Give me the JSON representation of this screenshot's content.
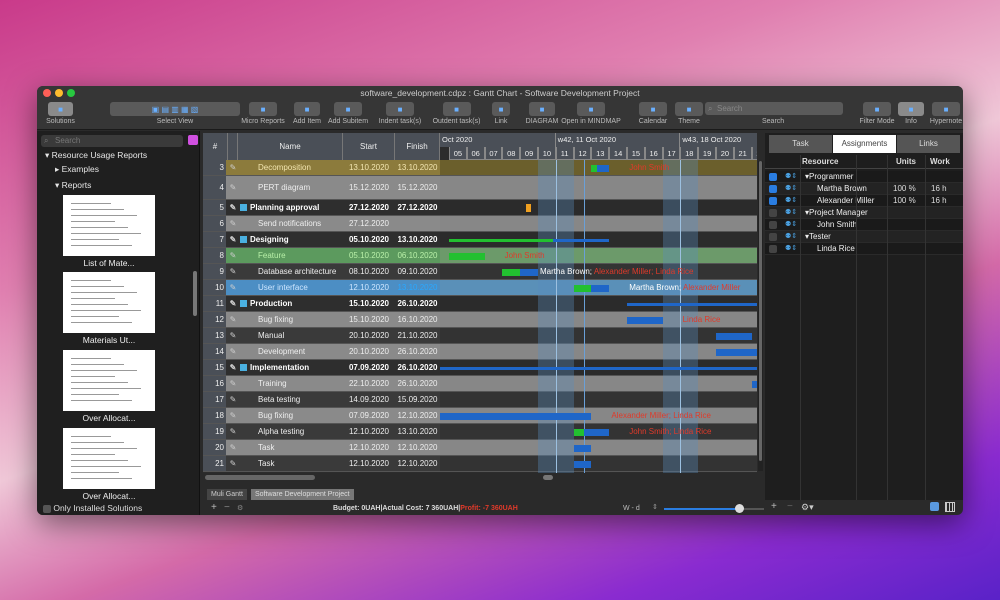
{
  "window": {
    "title": "software_development.cdpz : Gantt Chart - Software Development Project"
  },
  "toolbar": {
    "items": [
      {
        "label": "Solutions",
        "icon": "solutions-icon"
      },
      {
        "label": "Select View",
        "icon": "view-icon"
      },
      {
        "label": "Micro Reports",
        "icon": "report-icon"
      },
      {
        "label": "Add Item",
        "icon": "add-item-icon"
      },
      {
        "label": "Add Subitem",
        "icon": "add-subitem-icon"
      },
      {
        "label": "Indent task(s)",
        "icon": "indent-icon"
      },
      {
        "label": "Outdent task(s)",
        "icon": "outdent-icon"
      },
      {
        "label": "Link",
        "icon": "link-icon"
      },
      {
        "label": "DIAGRAM",
        "icon": "diagram-icon"
      },
      {
        "label": "Open in MINDMAP",
        "icon": "mindmap-icon"
      },
      {
        "label": "Calendar",
        "icon": "calendar-icon"
      },
      {
        "label": "Theme",
        "icon": "theme-icon"
      },
      {
        "label": "Filter Mode",
        "icon": "filter-icon"
      },
      {
        "label": "Info",
        "icon": "info-icon"
      },
      {
        "label": "Hypernote",
        "icon": "hypernote-icon"
      }
    ],
    "search_label": "Search",
    "search_placeholder": "Search"
  },
  "sidebar": {
    "search_placeholder": "Search",
    "section": "Resource Usage Reports",
    "examples": "Examples",
    "reports": "Reports",
    "thumbnails": [
      "List of Mate...",
      "Materials Ut...",
      "Over Allocat...",
      "Over Allocat..."
    ],
    "only_installed": "Only Installed Solutions"
  },
  "table": {
    "headers": {
      "num": "#",
      "name": "Name",
      "start": "Start",
      "finish": "Finish"
    },
    "rows": [
      {
        "n": "3",
        "name": "Decomposition",
        "start": "13.10.2020",
        "finish": "13.10.2020",
        "style": "yellow",
        "lvl": 1,
        "bar": [
          13,
          13
        ],
        "prog": 0.3,
        "labels": [
          {
            "t": "John Smith",
            "c": "red"
          }
        ]
      },
      {
        "n": "4",
        "name": "PERT diagram",
        "start": "15.12.2020",
        "finish": "15.12.2020",
        "style": "gray",
        "lvl": 1,
        "tall": true
      },
      {
        "n": "5",
        "name": "Planning approval",
        "start": "27.12.2020",
        "finish": "27.12.2020",
        "style": "summary",
        "lvl": 0,
        "milestone": 9
      },
      {
        "n": "6",
        "name": "Send notifications",
        "start": "27.12.2020",
        "finish": "",
        "style": "gray",
        "lvl": 1
      },
      {
        "n": "7",
        "name": "Designing",
        "start": "05.10.2020",
        "finish": "13.10.2020",
        "style": "summary",
        "lvl": 0,
        "bar": [
          5,
          13
        ],
        "prog": 0.65,
        "thin": true
      },
      {
        "n": "8",
        "name": "Feature",
        "start": "05.10.2020",
        "finish": "06.10.2020",
        "style": "green",
        "lvl": 1,
        "bar": [
          5,
          6
        ],
        "prog": 1,
        "labels": [
          {
            "t": "John Smith",
            "c": "red"
          }
        ]
      },
      {
        "n": "9",
        "name": "Database architecture",
        "start": "08.10.2020",
        "finish": "09.10.2020",
        "style": "dark",
        "lvl": 1,
        "bar": [
          8,
          9
        ],
        "prog": 0.5,
        "labels": [
          {
            "t": "Martha Brown; ",
            "c": "white"
          },
          {
            "t": "Alexander Miller; Linda Rice",
            "c": "red"
          }
        ]
      },
      {
        "n": "10",
        "name": "User interface",
        "start": "12.10.2020",
        "finish": "13.10.2020",
        "style": "blue",
        "lvl": 1,
        "bar": [
          12,
          13
        ],
        "prog": 0.5,
        "labels": [
          {
            "t": "Martha Brown; ",
            "c": "white"
          },
          {
            "t": "Alexander Miller",
            "c": "red"
          }
        ]
      },
      {
        "n": "11",
        "name": "Production",
        "start": "15.10.2020",
        "finish": "26.10.2020",
        "style": "summary",
        "lvl": 0,
        "bar": [
          15,
          26
        ],
        "prog": 0,
        "thin": true
      },
      {
        "n": "12",
        "name": "Bug fixing",
        "start": "15.10.2020",
        "finish": "16.10.2020",
        "style": "gray",
        "lvl": 1,
        "bar": [
          15,
          16
        ],
        "prog": 0,
        "labels": [
          {
            "t": "Linda Rice",
            "c": "red"
          }
        ]
      },
      {
        "n": "13",
        "name": "Manual",
        "start": "20.10.2020",
        "finish": "21.10.2020",
        "style": "dark",
        "lvl": 1,
        "bar": [
          20,
          21
        ],
        "prog": 0
      },
      {
        "n": "14",
        "name": "Development",
        "start": "20.10.2020",
        "finish": "26.10.2020",
        "style": "gray",
        "lvl": 1,
        "bar": [
          20,
          26
        ],
        "prog": 0
      },
      {
        "n": "15",
        "name": "Implementation",
        "start": "07.09.2020",
        "finish": "26.10.2020",
        "style": "summary",
        "lvl": 0,
        "bar": [
          -30,
          26
        ],
        "prog": 0,
        "thin": true
      },
      {
        "n": "16",
        "name": "Training",
        "start": "22.10.2020",
        "finish": "26.10.2020",
        "style": "gray",
        "lvl": 1,
        "bar": [
          22,
          26
        ],
        "prog": 0
      },
      {
        "n": "17",
        "name": "Beta testing",
        "start": "14.09.2020",
        "finish": "15.09.2020",
        "style": "dark",
        "lvl": 1
      },
      {
        "n": "18",
        "name": "Bug fixing",
        "start": "07.09.2020",
        "finish": "12.10.2020",
        "style": "gray",
        "lvl": 1,
        "bar": [
          -30,
          12
        ],
        "prog": 0,
        "labels": [
          {
            "t": "Alexander Miller; Linda Rice",
            "c": "red"
          }
        ]
      },
      {
        "n": "19",
        "name": "Alpha testing",
        "start": "12.10.2020",
        "finish": "13.10.2020",
        "style": "dark",
        "lvl": 1,
        "bar": [
          12,
          13
        ],
        "prog": 0.3,
        "labels": [
          {
            "t": "John Smith; Linda Rice",
            "c": "red"
          }
        ]
      },
      {
        "n": "20",
        "name": "Task",
        "start": "12.10.2020",
        "finish": "12.10.2020",
        "style": "gray",
        "lvl": 1,
        "bar": [
          12,
          12
        ],
        "prog": 0
      },
      {
        "n": "21",
        "name": "Task",
        "start": "12.10.2020",
        "finish": "12.10.2020",
        "style": "dark",
        "lvl": 1,
        "bar": [
          12,
          12
        ],
        "prog": 0
      }
    ]
  },
  "timeline": {
    "weeks": [
      {
        "label": "Oct 2020",
        "day": 4
      },
      {
        "label": "w42, 11 Oct 2020",
        "day": 11
      },
      {
        "label": "w43, 18 Oct 2020",
        "day": 18
      }
    ],
    "days": [
      "05",
      "06",
      "07",
      "08",
      "09",
      "10",
      "11",
      "12",
      "13",
      "14",
      "15",
      "16",
      "17",
      "18",
      "19",
      "20",
      "21",
      "22"
    ],
    "weekends": [
      10,
      11,
      17,
      18
    ],
    "today": 12.6
  },
  "colors": {
    "bar": "#1f66c8",
    "progress": "#22c030",
    "label_red": "#e03a2a",
    "milestone": "#f0a020"
  },
  "right_panel": {
    "tabs": [
      "Task",
      "Assignments",
      "Links"
    ],
    "active_tab": "Assignments",
    "headers": {
      "resource": "Resource",
      "units": "Units",
      "work": "Work"
    },
    "rows": [
      {
        "name": "Programmer",
        "group": true,
        "checked": true,
        "units": "",
        "work": ""
      },
      {
        "name": "Martha Brown",
        "group": false,
        "checked": true,
        "units": "100 %",
        "work": "16 h"
      },
      {
        "name": "Alexander Miller",
        "group": false,
        "checked": true,
        "units": "100 %",
        "work": "16 h"
      },
      {
        "name": "Project Manager",
        "group": true,
        "checked": false,
        "units": "",
        "work": ""
      },
      {
        "name": "John Smith",
        "group": false,
        "checked": false,
        "units": "",
        "work": ""
      },
      {
        "name": "Tester",
        "group": true,
        "checked": false,
        "units": "",
        "work": ""
      },
      {
        "name": "Linda Rice",
        "group": false,
        "checked": false,
        "units": "",
        "work": ""
      }
    ]
  },
  "bottom": {
    "tabs": [
      "Muli Gantt",
      "Software Development Project"
    ],
    "budget": "Budget: 0UAH|Actual Cost: 7 360UAH|",
    "profit": "Profit: -7 360UAH",
    "scale": "W - d",
    "zoom": 0.75
  }
}
